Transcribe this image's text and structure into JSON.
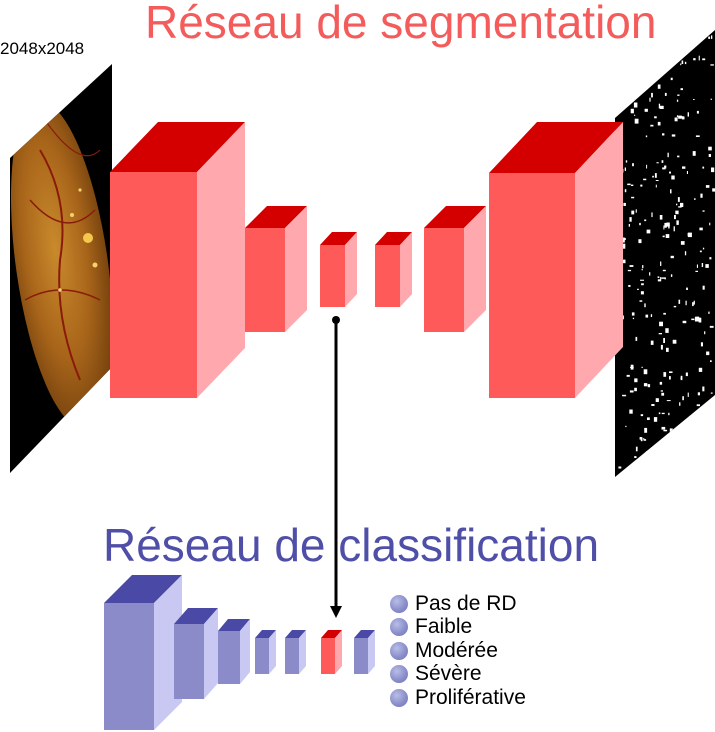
{
  "titles": {
    "segmentation": "Réseau de segmentation",
    "classification": "Réseau de classification"
  },
  "input_size_label": "2048x2048",
  "classes": [
    "Pas de RD",
    "Faible",
    "Modérée",
    "Sévère",
    "Proliférative"
  ],
  "colors": {
    "segmentation_title": "#f45b5b",
    "classification_title": "#4f4fa8",
    "seg_block_front": "#ff5a5a",
    "seg_block_side": "#ffa8ad",
    "seg_block_top": "#d40000",
    "cls_block_front": "#8b8bc9",
    "cls_block_side": "#c8c8f2",
    "cls_block_top": "#4a4aa6",
    "arrow": "#000000"
  },
  "images": {
    "input": "retina-fundus-photograph",
    "output": "segmentation-mask"
  }
}
